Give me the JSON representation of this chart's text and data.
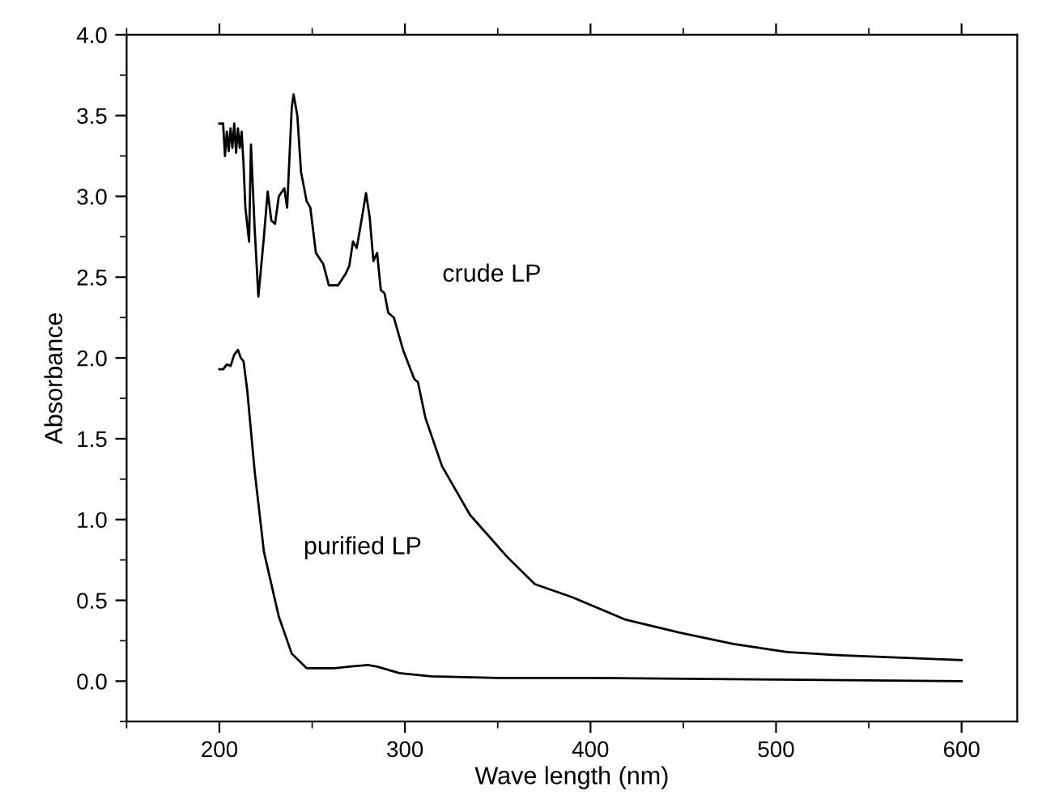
{
  "chart_data": {
    "type": "line",
    "xlabel": "Wave length (nm)",
    "ylabel": "Absorbance",
    "xlim": [
      150,
      630
    ],
    "xticks": [
      200,
      300,
      400,
      500,
      600
    ],
    "ylim": [
      -0.25,
      4.0
    ],
    "yticks": [
      {
        "value": 0,
        "label": "0.0"
      },
      0.5,
      {
        "value": 1,
        "label": "1.0"
      },
      1.5,
      {
        "value": 2,
        "label": "2.0"
      },
      2.5,
      {
        "value": 3,
        "label": "3.0"
      },
      3.5,
      {
        "value": 4,
        "label": "4.0"
      }
    ],
    "grid": false,
    "marker": "none",
    "line_style": "solid",
    "series": [
      {
        "name": "crude LP",
        "color": "#000000",
        "x": [
          200,
          202,
          203,
          204,
          205,
          206,
          207,
          208,
          209,
          210,
          211,
          212,
          213,
          214,
          216,
          217,
          219,
          221,
          224,
          226,
          228,
          230,
          232,
          235,
          236.5,
          239,
          240,
          242,
          244,
          247,
          249,
          252,
          256,
          259,
          264,
          268,
          270,
          272,
          274,
          277,
          279,
          281,
          283,
          285,
          287,
          289,
          291,
          294,
          299,
          305,
          307,
          311,
          320,
          335,
          355,
          370,
          390,
          419,
          448,
          477,
          506,
          535,
          600
        ],
        "values": [
          3.45,
          3.45,
          3.25,
          3.4,
          3.28,
          3.42,
          3.3,
          3.45,
          3.27,
          3.42,
          3.3,
          3.4,
          3.2,
          2.93,
          2.72,
          3.32,
          2.8,
          2.38,
          2.75,
          3.03,
          2.85,
          2.83,
          3.0,
          3.05,
          2.93,
          3.55,
          3.63,
          3.5,
          3.15,
          2.97,
          2.93,
          2.65,
          2.58,
          2.45,
          2.45,
          2.52,
          2.57,
          2.72,
          2.68,
          2.88,
          3.02,
          2.87,
          2.6,
          2.65,
          2.42,
          2.4,
          2.28,
          2.25,
          2.05,
          1.87,
          1.85,
          1.63,
          1.33,
          1.03,
          0.77,
          0.6,
          0.52,
          0.38,
          0.3,
          0.23,
          0.18,
          0.16,
          0.13
        ]
      },
      {
        "name": "purified LP",
        "color": "#000000",
        "x": [
          200,
          202,
          204,
          206,
          208,
          210,
          211.5,
          213,
          215,
          219,
          224,
          232,
          239,
          247,
          255,
          262,
          270,
          280,
          285,
          297,
          314,
          350,
          400,
          500,
          600
        ],
        "values": [
          1.93,
          1.93,
          1.96,
          1.95,
          2.02,
          2.05,
          2.0,
          1.98,
          1.8,
          1.3,
          0.8,
          0.4,
          0.17,
          0.08,
          0.08,
          0.08,
          0.09,
          0.1,
          0.09,
          0.05,
          0.03,
          0.02,
          0.02,
          0.01,
          0.0
        ]
      }
    ]
  }
}
